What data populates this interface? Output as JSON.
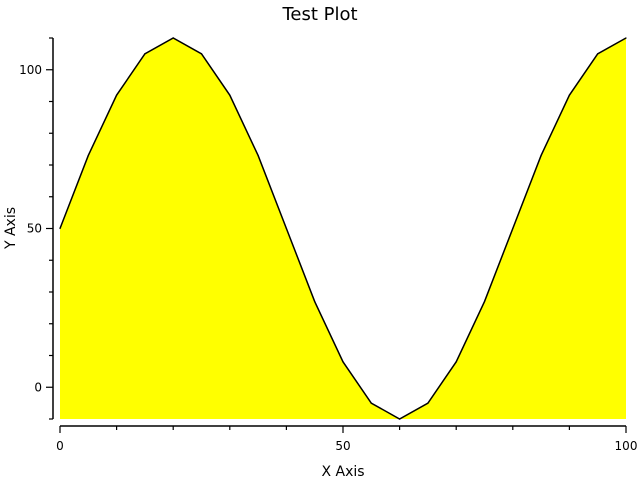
{
  "chart_data": {
    "type": "area",
    "title": "Test Plot",
    "xlabel": "X Axis",
    "ylabel": "Y Axis",
    "xlim": [
      0,
      100
    ],
    "ylim": [
      -10,
      110
    ],
    "xticks": [
      0,
      50,
      100
    ],
    "yticks": [
      0,
      50,
      100
    ],
    "grid": false,
    "fill_color": "#ffff00",
    "line_color": "#000000",
    "baseline": -10,
    "x": [
      0,
      5,
      10,
      15,
      20,
      25,
      30,
      35,
      40,
      45,
      50,
      55,
      60,
      65,
      70,
      75,
      80,
      85,
      90,
      95,
      100
    ],
    "y": [
      50,
      73,
      92,
      105,
      110,
      105,
      92,
      73,
      50,
      27,
      8,
      -5,
      -10,
      -5,
      8,
      27,
      50,
      73,
      92,
      105,
      110
    ]
  }
}
